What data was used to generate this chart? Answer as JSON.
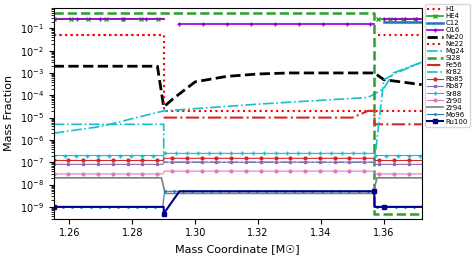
{
  "xlabel": "Mass Coordinate [M☉]",
  "ylabel": "Mass Fraction",
  "xlim": [
    1.255,
    1.372
  ],
  "ylim": [
    3e-10,
    0.8
  ],
  "xticks": [
    1.26,
    1.28,
    1.3,
    1.32,
    1.34,
    1.36
  ],
  "series": {
    "H1": {
      "color": "#ff0000",
      "linestyle": "dotted",
      "lw": 1.5
    },
    "HE4": {
      "color": "#2ca02c",
      "linestyle": "solid",
      "lw": 1.2,
      "marker": "x",
      "ms": 3
    },
    "C12": {
      "color": "#1f77b4",
      "linestyle": "solid",
      "lw": 1.8
    },
    "O16": {
      "color": "#9400d3",
      "linestyle": "solid",
      "lw": 1.2,
      "marker": "+",
      "ms": 3
    },
    "Ne20": {
      "color": "#000000",
      "linestyle": "dashed",
      "lw": 2.0
    },
    "Ne22": {
      "color": "#ff0000",
      "linestyle": "dotted",
      "lw": 1.5
    },
    "Mg24": {
      "color": "#17becf",
      "linestyle": "dashdot",
      "lw": 1.2
    },
    "Si28": {
      "color": "#2ca02c",
      "linestyle": "dashed",
      "lw": 1.8
    },
    "Fe56": {
      "color": "#d62728",
      "linestyle": "dashdot",
      "lw": 1.5
    },
    "Kr82": {
      "color": "#17becf",
      "linestyle": "dashdot",
      "lw": 1.2
    },
    "Rb85": {
      "color": "#d62728",
      "linestyle": "solid",
      "lw": 0.8,
      "marker": "o",
      "ms": 2
    },
    "Rb87": {
      "color": "#9467bd",
      "linestyle": "solid",
      "lw": 0.8,
      "marker": "s",
      "ms": 2
    },
    "Sr88": {
      "color": "#17becf",
      "linestyle": "solid",
      "lw": 0.8,
      "marker": "+",
      "ms": 3
    },
    "Zr90": {
      "color": "#e377c2",
      "linestyle": "solid",
      "lw": 0.8,
      "marker": "o",
      "ms": 2
    },
    "Zr94": {
      "color": "#7f7f7f",
      "linestyle": "solid",
      "lw": 1.2,
      "marker": "None"
    },
    "Mo96": {
      "color": "#1f77b4",
      "linestyle": "solid",
      "lw": 0.8
    },
    "Ru100": {
      "color": "#00008b",
      "linestyle": "solid",
      "lw": 1.5,
      "marker": "s",
      "ms": 3
    }
  }
}
